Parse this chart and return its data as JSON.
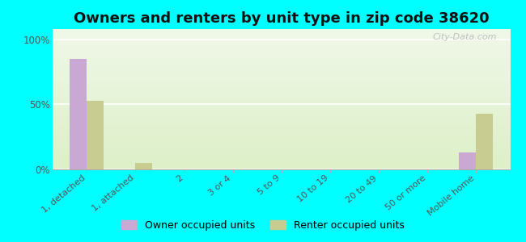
{
  "title": "Owners and renters by unit type in zip code 38620",
  "categories": [
    "1, detached",
    "1, attached",
    "2",
    "3 or 4",
    "5 to 9",
    "10 to 19",
    "20 to 49",
    "50 or more",
    "Mobile home"
  ],
  "owner_values": [
    85,
    0,
    0,
    0,
    0,
    0,
    0,
    0,
    13
  ],
  "renter_values": [
    53,
    5,
    0,
    0,
    0,
    0,
    0,
    0,
    43
  ],
  "owner_color": "#c9a8d4",
  "renter_color": "#c8cc90",
  "background_color": "#00ffff",
  "plot_bg_top": "#ddf0c8",
  "plot_bg_bottom": "#f0f8e8",
  "title_fontsize": 13,
  "ylabel_ticks": [
    "0%",
    "50%",
    "100%"
  ],
  "ytick_vals": [
    0,
    50,
    100
  ],
  "ylim": [
    0,
    108
  ],
  "bar_width": 0.35,
  "watermark": "City-Data.com"
}
